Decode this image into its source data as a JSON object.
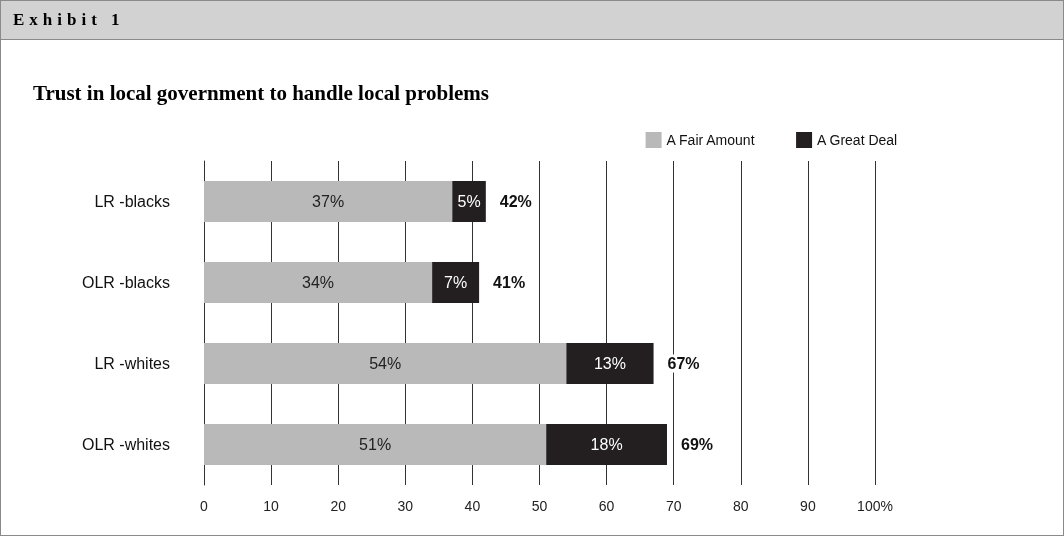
{
  "chart_data": {
    "type": "bar",
    "title": "Exhibit 1",
    "subtitle": "Trust in local government to handle local problems",
    "orientation": "horizontal",
    "stacked": true,
    "categories": [
      "LR -blacks",
      "OLR -blacks",
      "LR -whites",
      "OLR -whites"
    ],
    "series": [
      {
        "name": "A Fair Amount",
        "color": "#b9b9b9",
        "values": [
          37,
          34,
          54,
          51
        ],
        "value_labels": [
          "37%",
          "34%",
          "54%",
          "51%"
        ]
      },
      {
        "name": "A Great Deal",
        "color": "#231f20",
        "values": [
          5,
          7,
          13,
          18
        ],
        "value_labels": [
          "5%",
          "7%",
          "13%",
          "18%"
        ]
      }
    ],
    "totals": [
      "42%",
      "41%",
      "67%",
      "69%"
    ],
    "xlim": [
      0,
      100
    ],
    "xticks": [
      0,
      10,
      20,
      30,
      40,
      50,
      60,
      70,
      80,
      90,
      {
        "value": 100,
        "label": "100%"
      }
    ],
    "grid": "x",
    "legend": "top right"
  }
}
